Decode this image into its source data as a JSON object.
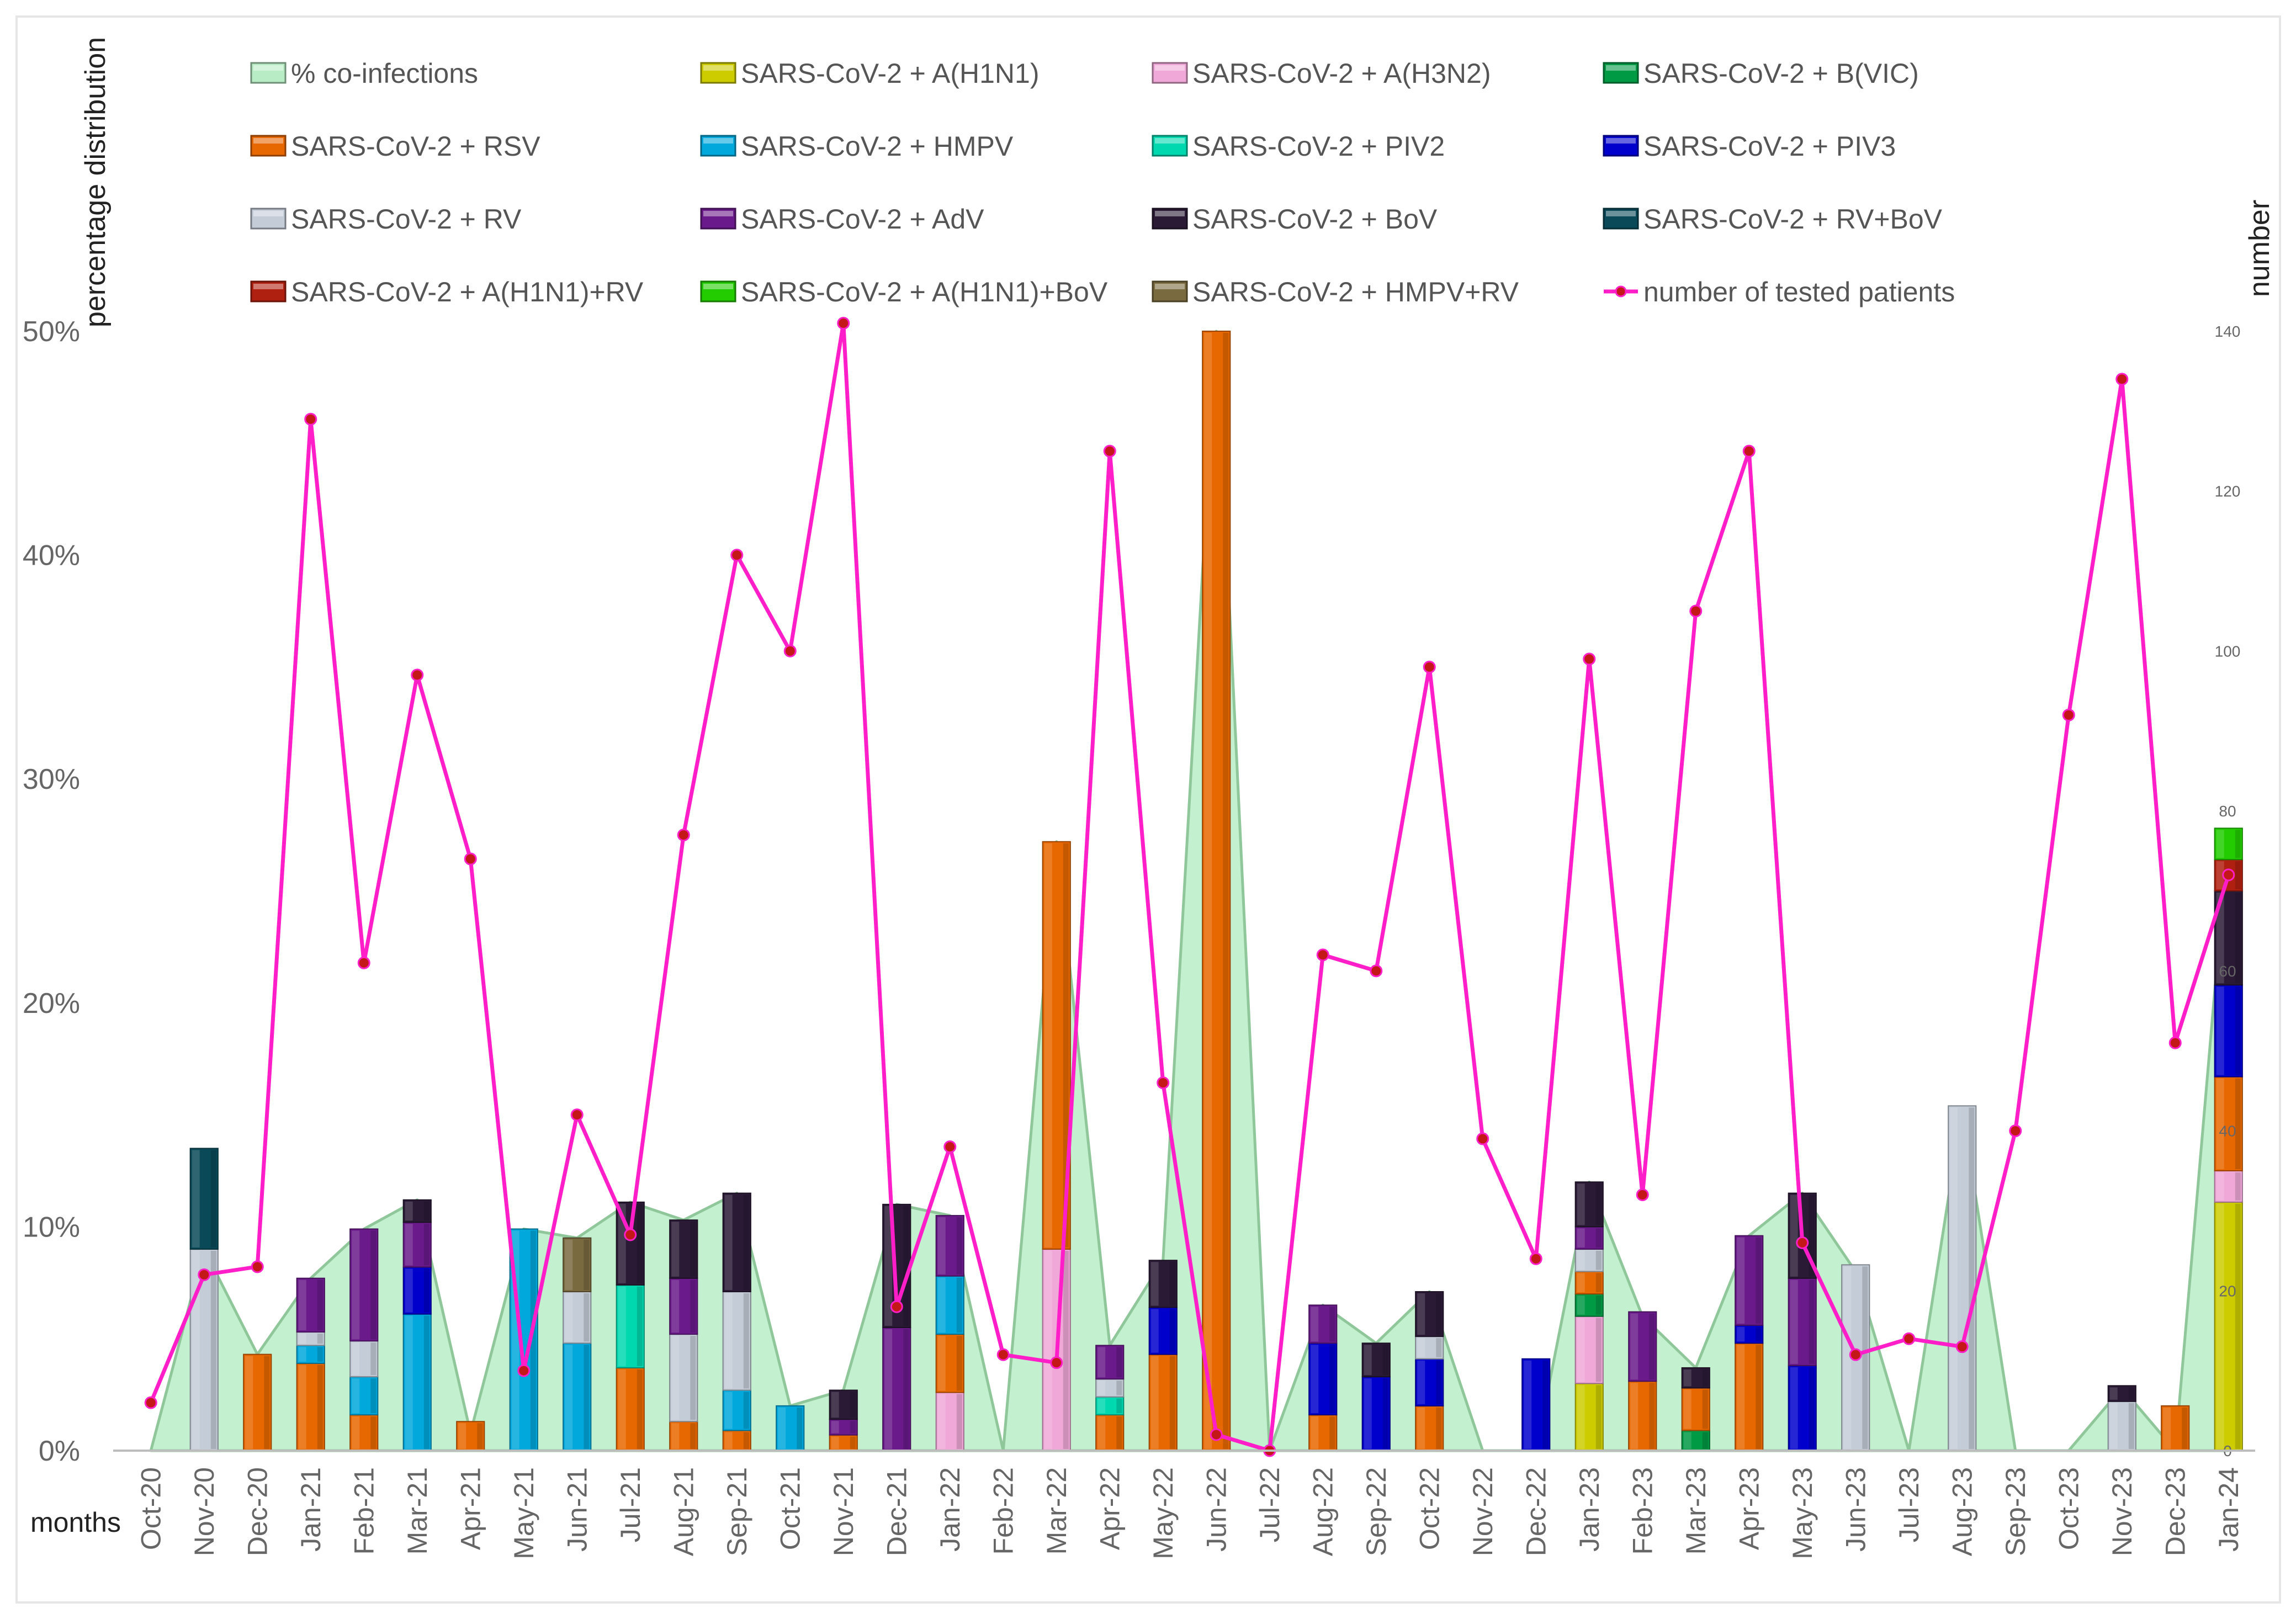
{
  "chart_data": {
    "type": "bar",
    "subtype": "stacked-bar-with-area-and-line",
    "title": "",
    "xlabel": "months",
    "ylabel_left": "percentage distribution",
    "ylabel_right": "number",
    "ylim_left": [
      0,
      50
    ],
    "ylim_right": [
      0,
      140
    ],
    "yticks_left": [
      "0%",
      "10%",
      "20%",
      "30%",
      "40%",
      "50%"
    ],
    "yticks_right": [
      "0",
      "20",
      "40",
      "60",
      "80",
      "100",
      "120",
      "140"
    ],
    "categories": [
      "Oct-20",
      "Nov-20",
      "Dec-20",
      "Jan-21",
      "Feb-21",
      "Mar-21",
      "Apr-21",
      "May-21",
      "Jun-21",
      "Jul-21",
      "Aug-21",
      "Sep-21",
      "Oct-21",
      "Nov-21",
      "Dec-21",
      "Jan-22",
      "Feb-22",
      "Mar-22",
      "Apr-22",
      "May-22",
      "Jun-22",
      "Jul-22",
      "Aug-22",
      "Sep-22",
      "Oct-22",
      "Nov-22",
      "Dec-22",
      "Jan-23",
      "Feb-23",
      "Mar-23",
      "Apr-23",
      "May-23",
      "Jun-23",
      "Jul-23",
      "Aug-23",
      "Sep-23",
      "Oct-23",
      "Nov-23",
      "Dec-23",
      "Jan-24"
    ],
    "legend": [
      {
        "name": "%  co-infections",
        "color": "#b8ecc4",
        "kind": "area"
      },
      {
        "name": "SARS-CoV-2 + A(H1N1)",
        "color": "#cccc00",
        "kind": "bar"
      },
      {
        "name": "SARS-CoV-2 + A(H3N2)",
        "color": "#f0a8d8",
        "kind": "bar"
      },
      {
        "name": "SARS-CoV-2 + B(VIC)",
        "color": "#009944",
        "kind": "bar"
      },
      {
        "name": "SARS-CoV-2 + RSV",
        "color": "#e86800",
        "kind": "bar"
      },
      {
        "name": "SARS-CoV-2 + HMPV",
        "color": "#00a8dc",
        "kind": "bar"
      },
      {
        "name": "SARS-CoV-2 + PIV2",
        "color": "#00d8b0",
        "kind": "bar"
      },
      {
        "name": "SARS-CoV-2 + PIV3",
        "color": "#0000cc",
        "kind": "bar"
      },
      {
        "name": "SARS-CoV-2 + RV",
        "color": "#c4ccd8",
        "kind": "bar"
      },
      {
        "name": "SARS-CoV-2 + AdV",
        "color": "#6a1a8a",
        "kind": "bar"
      },
      {
        "name": "SARS-CoV-2 + BoV",
        "color": "#2a1a36",
        "kind": "bar"
      },
      {
        "name": "SARS-CoV-2 + RV+BoV",
        "color": "#0a4a58",
        "kind": "bar"
      },
      {
        "name": "SARS-CoV-2 + A(H1N1)+RV",
        "color": "#b02010",
        "kind": "bar"
      },
      {
        "name": "SARS-CoV-2 + A(H1N1)+BoV",
        "color": "#22cc00",
        "kind": "bar"
      },
      {
        "name": "SARS-CoV-2 + HMPV+RV",
        "color": "#7a6a40",
        "kind": "bar"
      },
      {
        "name": "number of tested patients",
        "color": "#ff1ec8",
        "kind": "line"
      }
    ],
    "co_infections_pct": [
      0,
      9,
      4.3,
      7.7,
      9.9,
      11.2,
      0.8,
      9.9,
      9.5,
      11.1,
      10.3,
      11.5,
      2,
      2.7,
      11,
      10.5,
      0,
      27.2,
      4.7,
      8.5,
      50,
      0,
      6.5,
      4.8,
      7.1,
      0,
      0,
      12,
      6,
      3.7,
      9.6,
      11.5,
      8,
      0,
      15.2,
      0,
      0,
      2.8,
      0,
      27.7
    ],
    "stacks": [
      [],
      [
        [
          "SARS-CoV-2 + RV",
          9
        ],
        [
          "SARS-CoV-2 + RV+BoV",
          4.5
        ]
      ],
      [
        [
          "SARS-CoV-2 + RSV",
          4.3
        ]
      ],
      [
        [
          "SARS-CoV-2 + RSV",
          3.9
        ],
        [
          "SARS-CoV-2 + HMPV",
          0.8
        ],
        [
          "SARS-CoV-2 + RV",
          0.6
        ],
        [
          "SARS-CoV-2 + AdV",
          2.4
        ]
      ],
      [
        [
          "SARS-CoV-2 + RSV",
          1.6
        ],
        [
          "SARS-CoV-2 + HMPV",
          1.7
        ],
        [
          "SARS-CoV-2 + RV",
          1.6
        ],
        [
          "SARS-CoV-2 + AdV",
          5
        ]
      ],
      [
        [
          "SARS-CoV-2 + HMPV",
          6.1
        ],
        [
          "SARS-CoV-2 + PIV3",
          2.1
        ],
        [
          "SARS-CoV-2 + AdV",
          2
        ],
        [
          "SARS-CoV-2 + BoV",
          1
        ]
      ],
      [
        [
          "SARS-CoV-2 + RSV",
          1.3
        ]
      ],
      [
        [
          "SARS-CoV-2 + HMPV",
          9.9
        ]
      ],
      [
        [
          "SARS-CoV-2 + HMPV",
          4.8
        ],
        [
          "SARS-CoV-2 + RV",
          2.3
        ],
        [
          "SARS-CoV-2 + HMPV+RV",
          2.4
        ]
      ],
      [
        [
          "SARS-CoV-2 + RSV",
          3.7
        ],
        [
          "SARS-CoV-2 + PIV2",
          3.7
        ],
        [
          "SARS-CoV-2 + BoV",
          3.7
        ]
      ],
      [
        [
          "SARS-CoV-2 + RSV",
          1.3
        ],
        [
          "SARS-CoV-2 + RV",
          3.9
        ],
        [
          "SARS-CoV-2 + AdV",
          2.5
        ],
        [
          "SARS-CoV-2 + BoV",
          2.6
        ]
      ],
      [
        [
          "SARS-CoV-2 + RSV",
          0.9
        ],
        [
          "SARS-CoV-2 + HMPV",
          1.8
        ],
        [
          "SARS-CoV-2 + RV",
          4.4
        ],
        [
          "SARS-CoV-2 + BoV",
          4.4
        ]
      ],
      [
        [
          "SARS-CoV-2 + HMPV",
          2
        ]
      ],
      [
        [
          "SARS-CoV-2 + RSV",
          0.7
        ],
        [
          "SARS-CoV-2 + AdV",
          0.7
        ],
        [
          "SARS-CoV-2 + BoV",
          1.3
        ]
      ],
      [
        [
          "SARS-CoV-2 + AdV",
          5.5
        ],
        [
          "SARS-CoV-2 + BoV",
          5.5
        ]
      ],
      [
        [
          "SARS-CoV-2 + A(H3N2)",
          2.6
        ],
        [
          "SARS-CoV-2 + RSV",
          2.6
        ],
        [
          "SARS-CoV-2 + HMPV",
          2.6
        ],
        [
          "SARS-CoV-2 + AdV",
          2.7
        ]
      ],
      [],
      [
        [
          "SARS-CoV-2 + A(H3N2)",
          9
        ],
        [
          "SARS-CoV-2 + RSV",
          18.2
        ]
      ],
      [
        [
          "SARS-CoV-2 + RSV",
          1.6
        ],
        [
          "SARS-CoV-2 + PIV2",
          0.8
        ],
        [
          "SARS-CoV-2 + RV",
          0.8
        ],
        [
          "SARS-CoV-2 + AdV",
          1.5
        ]
      ],
      [
        [
          "SARS-CoV-2 + RSV",
          4.3
        ],
        [
          "SARS-CoV-2 + PIV3",
          2.1
        ],
        [
          "SARS-CoV-2 + BoV",
          2.1
        ]
      ],
      [
        [
          "SARS-CoV-2 + RSV",
          50
        ]
      ],
      [],
      [
        [
          "SARS-CoV-2 + RSV",
          1.6
        ],
        [
          "SARS-CoV-2 + PIV3",
          3.2
        ],
        [
          "SARS-CoV-2 + AdV",
          1.7
        ]
      ],
      [
        [
          "SARS-CoV-2 + PIV3",
          3.3
        ],
        [
          "SARS-CoV-2 + BoV",
          1.5
        ]
      ],
      [
        [
          "SARS-CoV-2 + RSV",
          2
        ],
        [
          "SARS-CoV-2 + PIV3",
          2.1
        ],
        [
          "SARS-CoV-2 + RV",
          1
        ],
        [
          "SARS-CoV-2 + BoV",
          2
        ]
      ],
      [],
      [
        [
          "SARS-CoV-2 + PIV3",
          4.1
        ]
      ],
      [
        [
          "SARS-CoV-2 + A(H1N1)",
          3
        ],
        [
          "SARS-CoV-2 + A(H3N2)",
          3
        ],
        [
          "SARS-CoV-2 + B(VIC)",
          1
        ],
        [
          "SARS-CoV-2 + RSV",
          1
        ],
        [
          "SARS-CoV-2 + RV",
          1
        ],
        [
          "SARS-CoV-2 + AdV",
          1
        ],
        [
          "SARS-CoV-2 + BoV",
          2
        ]
      ],
      [
        [
          "SARS-CoV-2 + RSV",
          3.1
        ],
        [
          "SARS-CoV-2 + AdV",
          3.1
        ]
      ],
      [
        [
          "SARS-CoV-2 + B(VIC)",
          0.9
        ],
        [
          "SARS-CoV-2 + RSV",
          1.9
        ],
        [
          "SARS-CoV-2 + BoV",
          0.9
        ]
      ],
      [
        [
          "SARS-CoV-2 + RSV",
          4.8
        ],
        [
          "SARS-CoV-2 + PIV3",
          0.8
        ],
        [
          "SARS-CoV-2 + AdV",
          4
        ]
      ],
      [
        [
          "SARS-CoV-2 + PIV3",
          3.8
        ],
        [
          "SARS-CoV-2 + AdV",
          3.9
        ],
        [
          "SARS-CoV-2 + BoV",
          3.8
        ]
      ],
      [
        [
          "SARS-CoV-2 + RV",
          8.3
        ]
      ],
      [],
      [
        [
          "SARS-CoV-2 + RV",
          15.4
        ]
      ],
      [],
      [],
      [
        [
          "SARS-CoV-2 + RV",
          2.2
        ],
        [
          "SARS-CoV-2 + BoV",
          0.7
        ]
      ],
      [
        [
          "SARS-CoV-2 + RSV",
          2
        ]
      ],
      [
        [
          "SARS-CoV-2 + A(H1N1)",
          11.1
        ],
        [
          "SARS-CoV-2 + A(H3N2)",
          1.4
        ],
        [
          "SARS-CoV-2 + RSV",
          4.2
        ],
        [
          "SARS-CoV-2 + PIV3",
          4.1
        ],
        [
          "SARS-CoV-2 + BoV",
          4.2
        ],
        [
          "SARS-CoV-2 + A(H1N1)+RV",
          1.4
        ],
        [
          "SARS-CoV-2 + A(H1N1)+BoV",
          1.4
        ]
      ]
    ],
    "tested_patients": [
      6,
      22,
      23,
      129,
      61,
      97,
      74,
      10,
      42,
      27,
      77,
      112,
      100,
      141,
      18,
      38,
      12,
      11,
      125,
      46,
      2,
      0,
      62,
      60,
      98,
      39,
      24,
      99,
      32,
      105,
      125,
      26,
      12,
      14,
      13,
      40,
      92,
      134,
      51,
      72
    ]
  }
}
